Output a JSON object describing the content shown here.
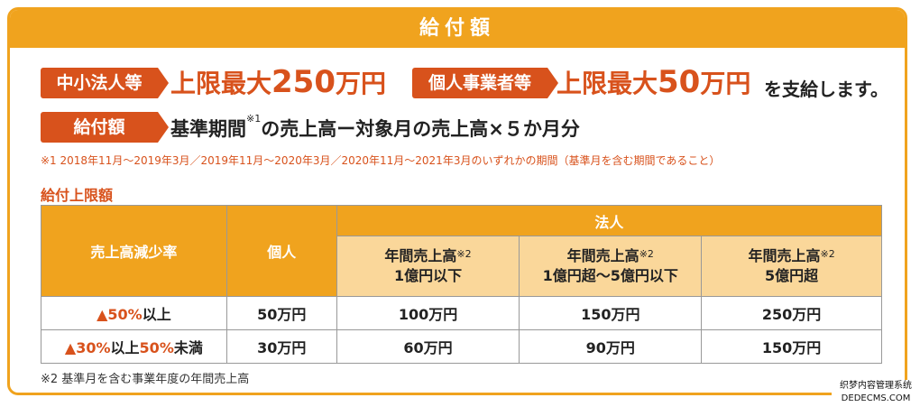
{
  "title": "給付額",
  "row1": {
    "badge_corp": "中小法人等",
    "corp_prefix": "上限最大",
    "corp_amount": "250",
    "corp_unit": "万円",
    "badge_indiv": "個人事業者等",
    "indiv_prefix": "上限最大",
    "indiv_amount": "50",
    "indiv_unit": "万円",
    "suffix": "を支給します。"
  },
  "row2": {
    "badge": "給付額",
    "formula_a": "基準期間",
    "formula_sup": "※1",
    "formula_b": "の売上高ー対象月の売上高×５か月分"
  },
  "note1": "※1  2018年11月～2019年3月／2019年11月～2020年3月／2020年11月～2021年3月のいずれかの期間（基準月を含む期間であること）",
  "subtitle": "給付上限額",
  "table": {
    "h_rate": "売上高減少率",
    "h_indiv": "個人",
    "h_corp": "法人",
    "h_cols": [
      {
        "l1": "年間売上高",
        "sup": "※2",
        "l2": "1億円以下"
      },
      {
        "l1": "年間売上高",
        "sup": "※2",
        "l2": "1億円超～5億円以下"
      },
      {
        "l1": "年間売上高",
        "sup": "※2",
        "l2": "5億円超"
      }
    ],
    "rows": [
      {
        "rate_red": "▲50%",
        "rate_rest": "以上",
        "rate_red2": "",
        "rate_rest2": "",
        "indiv": "50万円",
        "c1": "100万円",
        "c2": "150万円",
        "c3": "250万円"
      },
      {
        "rate_red": "▲30%",
        "rate_rest": "以上",
        "rate_red2": "50%",
        "rate_rest2": "未満",
        "indiv": "30万円",
        "c1": "60万円",
        "c2": "90万円",
        "c3": "150万円"
      }
    ]
  },
  "note2": "※2 基準月を含む事業年度の年間売上高",
  "watermark": {
    "line1": "织梦内容管理系统",
    "line2": "DEDECMS.COM"
  },
  "colors": {
    "accent": "#f0a31e",
    "badge": "#d8521c",
    "light": "#fad79a"
  }
}
